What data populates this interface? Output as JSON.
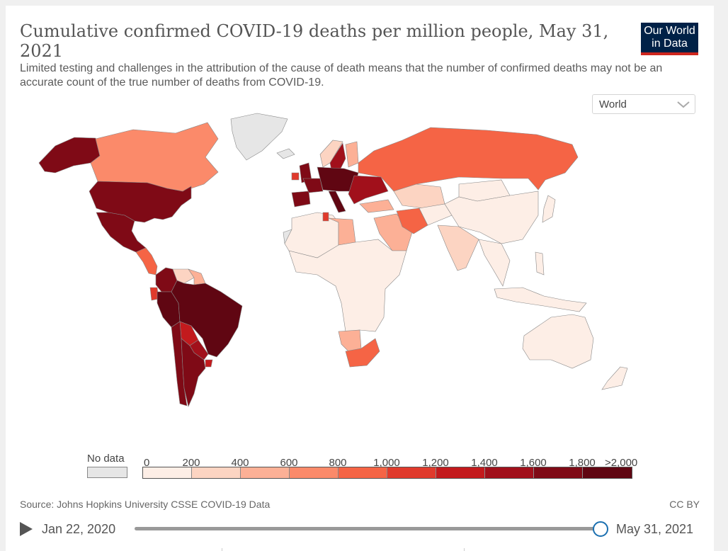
{
  "header": {
    "title": "Cumulative confirmed COVID-19 deaths per million people, May 31, 2021",
    "subtitle": "Limited testing and challenges in the attribution of the cause of death means that the number of confirmed deaths may not be an accurate count of the true number of deaths from COVID-19.",
    "logo_line1": "Our World",
    "logo_line2": "in Data"
  },
  "region_selector": {
    "value": "World"
  },
  "legend": {
    "nodata_label": "No data",
    "ticks": [
      "0",
      "200",
      "400",
      "600",
      "800",
      "1,000",
      "1,200",
      "1,400",
      "1,600",
      "1,800",
      ">2,000"
    ],
    "colors": [
      "#fdeee6",
      "#fcd4c2",
      "#fcb096",
      "#fb8a6a",
      "#f56445",
      "#e03a2c",
      "#c31a1d",
      "#a1101b",
      "#7f0a16",
      "#600612"
    ],
    "nodata_color": "#e6e6e6"
  },
  "map": {
    "type": "choropleth",
    "title": "Cumulative confirmed COVID-19 deaths per million people",
    "date": "May 31, 2021",
    "regions": [
      {
        "name": "USA",
        "bin": 8
      },
      {
        "name": "Alaska",
        "bin": 8
      },
      {
        "name": "Canada",
        "bin": 3
      },
      {
        "name": "Greenland",
        "bin": null
      },
      {
        "name": "Mexico",
        "bin": 8
      },
      {
        "name": "Central America",
        "bin": 4
      },
      {
        "name": "Colombia",
        "bin": 8
      },
      {
        "name": "Venezuela",
        "bin": 1
      },
      {
        "name": "Guyana region",
        "bin": 2
      },
      {
        "name": "Ecuador",
        "bin": 5
      },
      {
        "name": "Brazil",
        "bin": 9
      },
      {
        "name": "Peru",
        "bin": 9
      },
      {
        "name": "Bolivia",
        "bin": 6
      },
      {
        "name": "Paraguay",
        "bin": 7
      },
      {
        "name": "Argentina",
        "bin": 8
      },
      {
        "name": "Chile",
        "bin": 8
      },
      {
        "name": "Uruguay",
        "bin": 6
      },
      {
        "name": "Iceland",
        "bin": null
      },
      {
        "name": "UK",
        "bin": 8
      },
      {
        "name": "Ireland",
        "bin": 5
      },
      {
        "name": "Norway",
        "bin": 1
      },
      {
        "name": "Sweden",
        "bin": 7
      },
      {
        "name": "Finland",
        "bin": 2
      },
      {
        "name": "Russia",
        "bin": 4
      },
      {
        "name": "Central Europe",
        "bin": 9
      },
      {
        "name": "France",
        "bin": 8
      },
      {
        "name": "Spain/Portugal",
        "bin": 8
      },
      {
        "name": "Italy",
        "bin": 9
      },
      {
        "name": "Ukraine/Balkans",
        "bin": 7
      },
      {
        "name": "Turkey",
        "bin": 2
      },
      {
        "name": "Kazakhstan",
        "bin": 1
      },
      {
        "name": "Iran",
        "bin": 4
      },
      {
        "name": "Middle East",
        "bin": 2
      },
      {
        "name": "Central Asia",
        "bin": 0
      },
      {
        "name": "Mongolia",
        "bin": 0
      },
      {
        "name": "China",
        "bin": 0
      },
      {
        "name": "India",
        "bin": 1
      },
      {
        "name": "South-East Asia",
        "bin": 0
      },
      {
        "name": "Japan",
        "bin": 0
      },
      {
        "name": "Indonesia",
        "bin": 0
      },
      {
        "name": "Philippines",
        "bin": 0
      },
      {
        "name": "Australia",
        "bin": 0
      },
      {
        "name": "New Zealand",
        "bin": 0
      },
      {
        "name": "North Africa",
        "bin": 0
      },
      {
        "name": "Libya",
        "bin": 2
      },
      {
        "name": "Tunisia",
        "bin": 5
      },
      {
        "name": "Western Sahara",
        "bin": null
      },
      {
        "name": "Sub-Saharan Africa",
        "bin": 0
      },
      {
        "name": "Namibia/Botswana",
        "bin": 2
      },
      {
        "name": "South Africa",
        "bin": 4
      }
    ]
  },
  "footer": {
    "source": "Source: Johns Hopkins University CSSE COVID-19 Data",
    "license": "CC BY",
    "timeline_start": "Jan 22, 2020",
    "timeline_end": "May 31, 2021"
  }
}
